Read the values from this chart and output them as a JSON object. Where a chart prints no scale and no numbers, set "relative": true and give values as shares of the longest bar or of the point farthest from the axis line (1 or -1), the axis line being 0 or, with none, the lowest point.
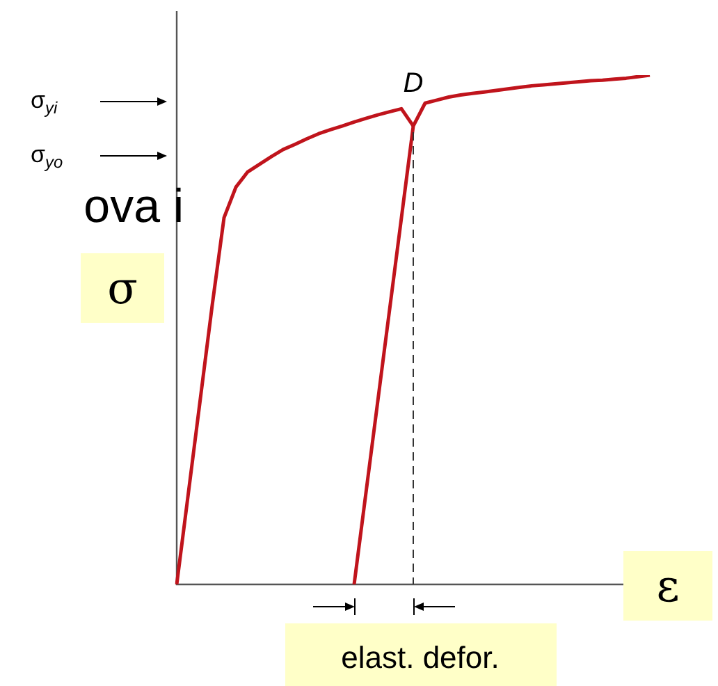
{
  "chart_data": {
    "type": "line",
    "relative": true,
    "xlabel": "ε",
    "ylabel": "σ",
    "marker": "none",
    "line_style": "solid",
    "categories": [
      null,
      null,
      null,
      null,
      null,
      null,
      null,
      null,
      null,
      null,
      null,
      null,
      null,
      null,
      null,
      null,
      null,
      null,
      null,
      null,
      null,
      null,
      null,
      null,
      null,
      null,
      null,
      null,
      null,
      null,
      null,
      null,
      null,
      null,
      null,
      null,
      null,
      null,
      null,
      null,
      null
    ],
    "series": [
      {
        "color": "#c0141c",
        "values": [
          0,
          0.182,
          0.365,
          0.548,
          0.72,
          0.78,
          0.81,
          0.825,
          0.84,
          0.854,
          0.864,
          0.875,
          0.885,
          0.893,
          0.9,
          0.908,
          0.915,
          0.922,
          0.928,
          0.934,
          0.9,
          null,
          null,
          null,
          null,
          null,
          null,
          null,
          null,
          null,
          null,
          null,
          null,
          null,
          null,
          null,
          null,
          null,
          null,
          null,
          null
        ]
      },
      {
        "color": "#c0141c",
        "values": [
          null,
          null,
          null,
          null,
          null,
          null,
          null,
          null,
          null,
          null,
          null,
          null,
          null,
          null,
          null,
          0,
          0.18,
          0.36,
          0.54,
          0.72,
          0.9,
          0.945,
          0.951,
          0.957,
          0.961,
          0.964,
          0.967,
          0.97,
          0.973,
          0.976,
          0.979,
          0.981,
          0.983,
          0.985,
          0.987,
          0.989,
          0.99,
          0.992,
          0.994,
          0.997,
          1
        ]
      }
    ],
    "annotations": [
      "D",
      "σ$_{yi}$",
      "σ$_{yo}$",
      "ova i",
      "elast. defor."
    ]
  }
}
